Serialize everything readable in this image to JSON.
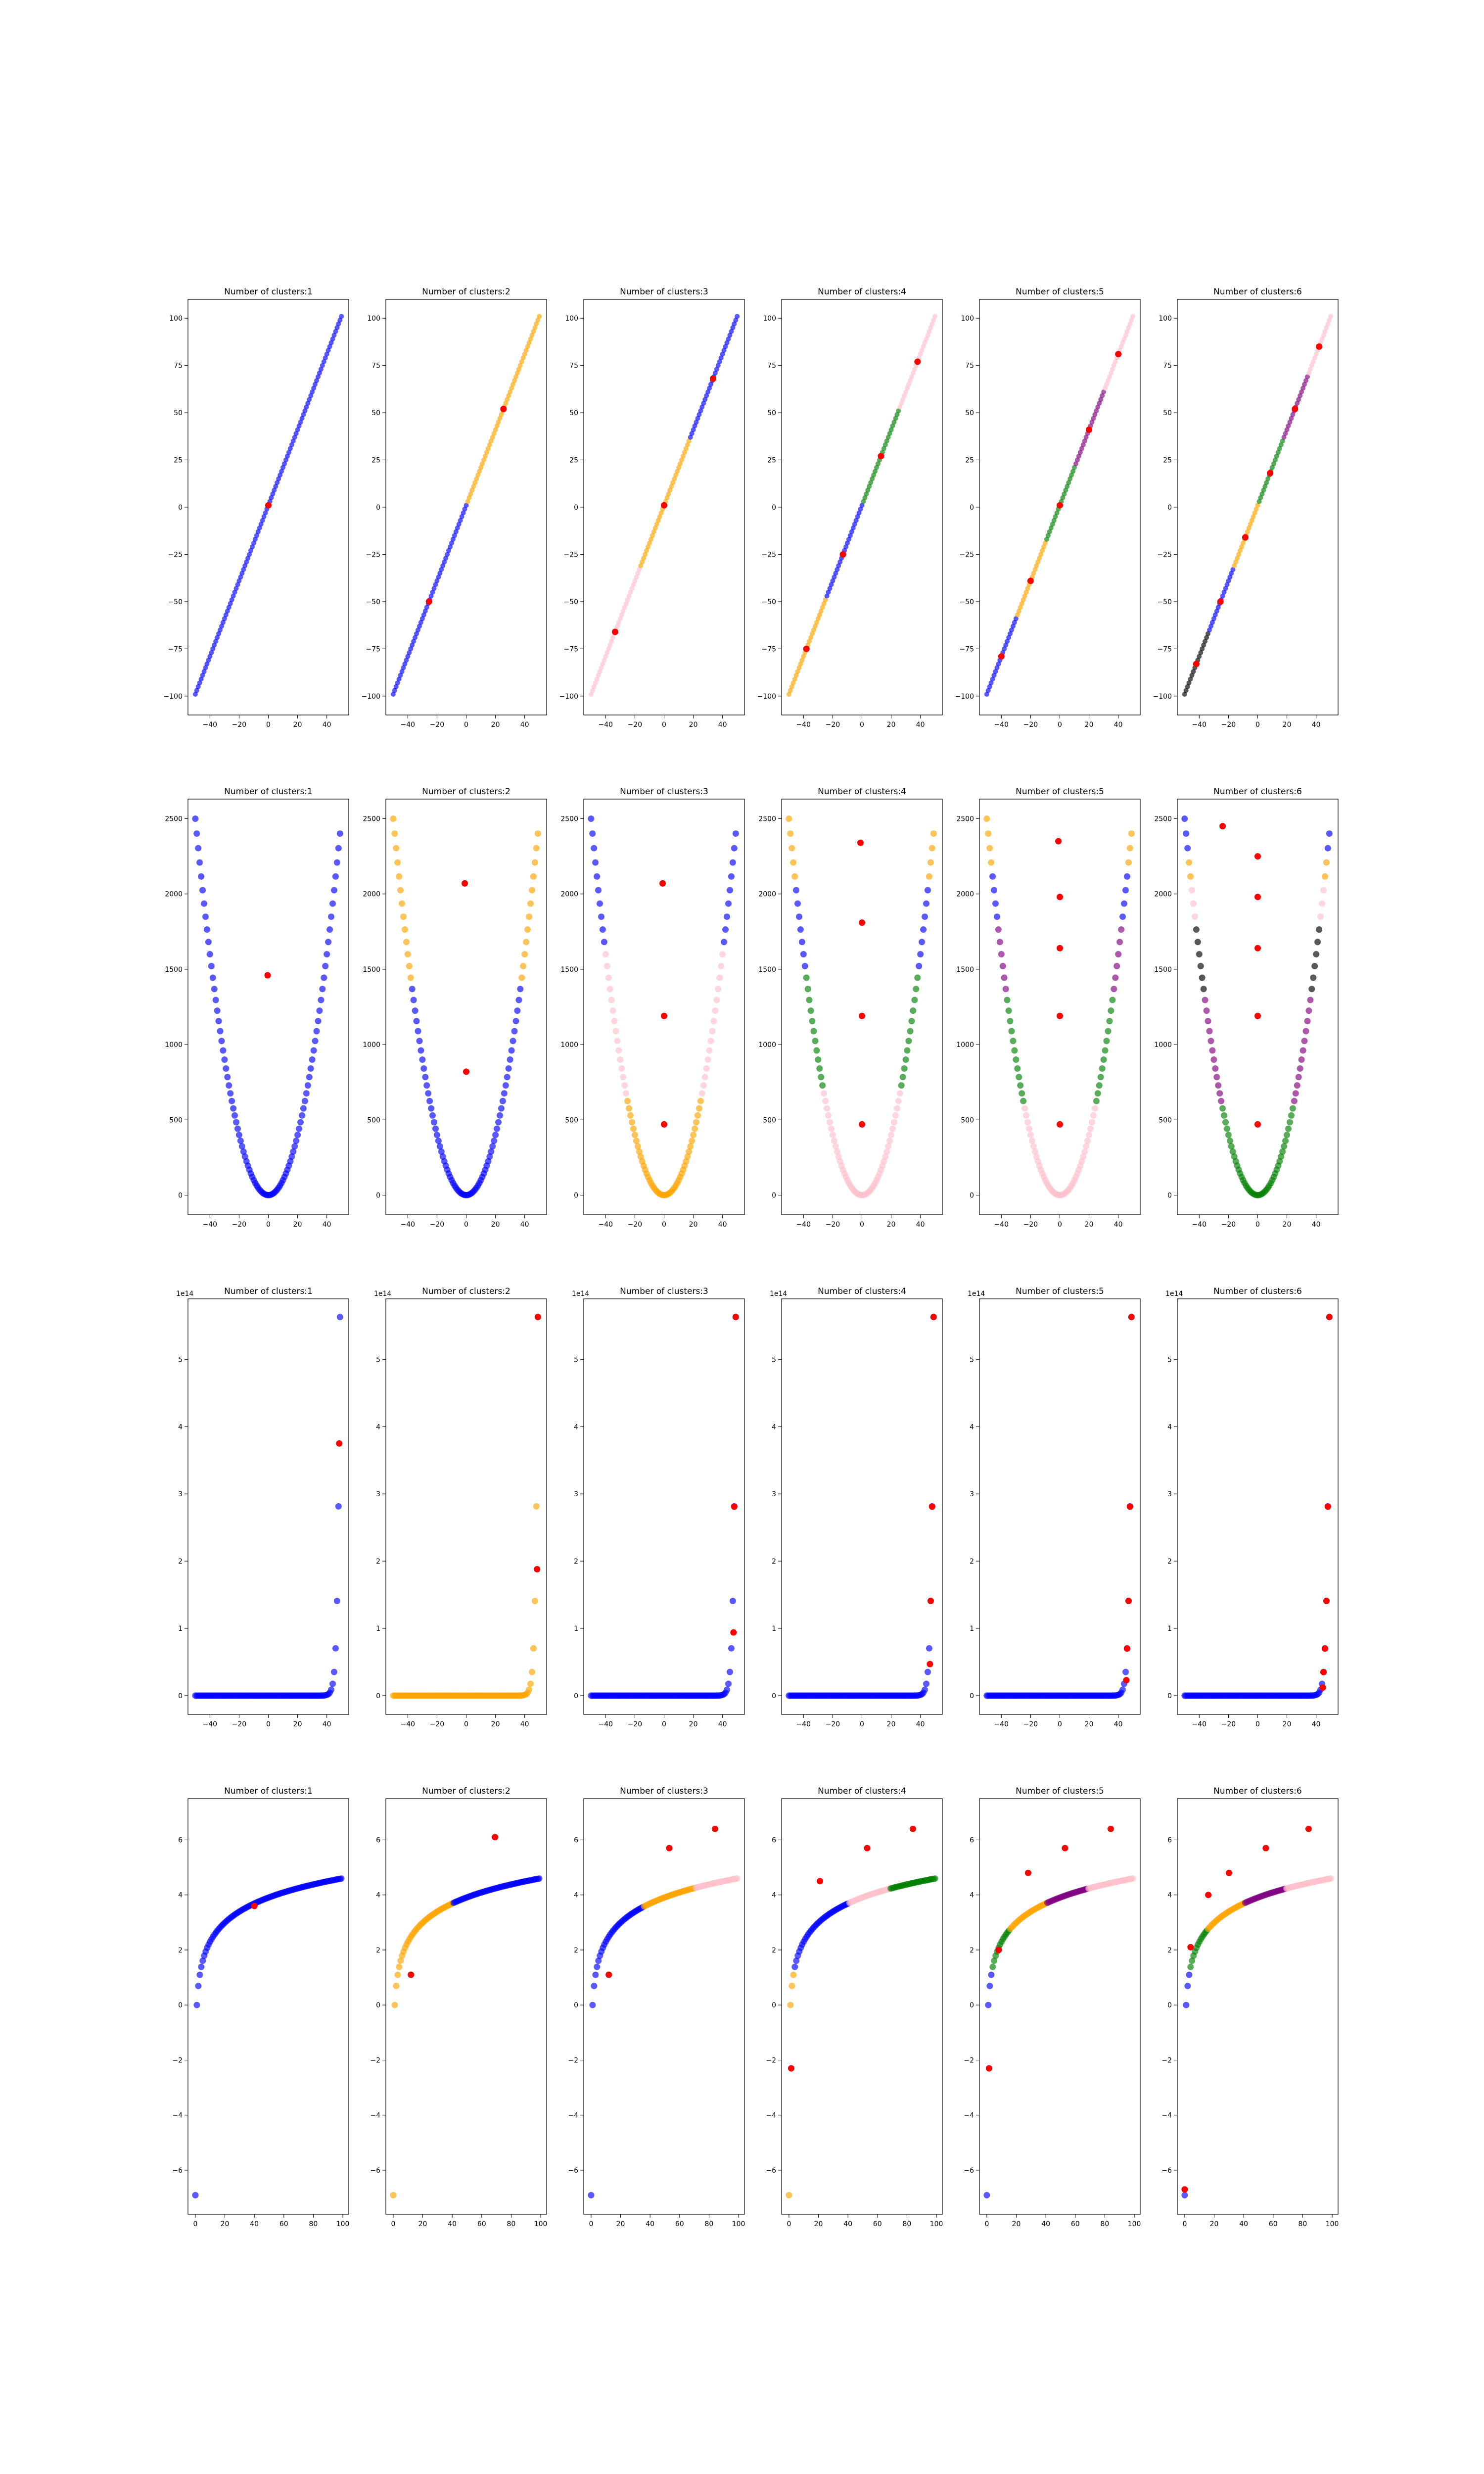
{
  "figure": {
    "layout": "4 rows × 6 columns of scatter plots",
    "background": "#ffffff"
  },
  "cluster_colors": [
    "#0000ff",
    "#ffa500",
    "#ffc0cb",
    "#008000",
    "#800080",
    "#000000"
  ],
  "centroid_color": "#ff0000",
  "chart_data": [
    {
      "row": 1,
      "type": "scatter",
      "function": "y = 2x + 1",
      "x_range": [
        -50,
        50
      ],
      "xlim": [
        -55,
        55
      ],
      "ylim": [
        -110,
        110
      ],
      "xticks": [
        -40,
        -20,
        0,
        20,
        40
      ],
      "yticks": [
        -100,
        -75,
        -50,
        -25,
        0,
        25,
        50,
        75,
        100
      ],
      "panels": [
        {
          "title": "Number of clusters:1",
          "k": 1,
          "boundaries": [],
          "centroids": [
            [
              0,
              1
            ]
          ]
        },
        {
          "title": "Number of clusters:2",
          "k": 2,
          "boundaries": [
            0
          ],
          "centroids": [
            [
              -25.5,
              -50
            ],
            [
              25.5,
              52
            ]
          ]
        },
        {
          "title": "Number of clusters:3",
          "k": 3,
          "boundaries": [
            -17,
            17
          ],
          "color_order": [
            2,
            1,
            0
          ],
          "centroids": [
            [
              -33.5,
              -66
            ],
            [
              0,
              1
            ],
            [
              33.5,
              68
            ]
          ]
        },
        {
          "title": "Number of clusters:4",
          "k": 4,
          "boundaries": [
            -25,
            0,
            25
          ],
          "color_order": [
            1,
            0,
            3,
            2
          ],
          "centroids": [
            [
              -38,
              -75
            ],
            [
              -13,
              -25
            ],
            [
              13,
              27
            ],
            [
              38,
              77
            ]
          ]
        },
        {
          "title": "Number of clusters:5",
          "k": 5,
          "boundaries": [
            -30,
            -10,
            10,
            30
          ],
          "color_order": [
            0,
            1,
            3,
            4,
            2
          ],
          "centroids": [
            [
              -40,
              -79
            ],
            [
              -20,
              -39
            ],
            [
              0,
              1
            ],
            [
              20,
              41
            ],
            [
              40,
              81
            ]
          ]
        },
        {
          "title": "Number of clusters:6",
          "k": 6,
          "boundaries": [
            -34,
            -17,
            0,
            17,
            34
          ],
          "color_order": [
            5,
            0,
            1,
            3,
            4,
            2
          ],
          "centroids": [
            [
              -42,
              -83
            ],
            [
              -25.5,
              -50
            ],
            [
              -8.5,
              -16
            ],
            [
              8.5,
              18
            ],
            [
              25.5,
              52
            ],
            [
              42,
              85
            ]
          ]
        }
      ]
    },
    {
      "row": 2,
      "type": "scatter",
      "function": "y = x^2",
      "x_range": [
        -50,
        49
      ],
      "xlim": [
        -55,
        55
      ],
      "ylim": [
        -130,
        2630
      ],
      "xticks": [
        -40,
        -20,
        0,
        20,
        40
      ],
      "yticks": [
        0,
        500,
        1000,
        1500,
        2000,
        2500
      ],
      "panels": [
        {
          "title": "Number of clusters:1",
          "k": 1,
          "boundaries": [],
          "centroids": [
            [
              -0.5,
              1460
            ]
          ]
        },
        {
          "title": "Number of clusters:2",
          "k": 2,
          "y_boundaries": [
            1400
          ],
          "color_order": [
            0,
            1
          ],
          "centroids": [
            [
              0,
              820
            ],
            [
              -1,
              2070
            ]
          ]
        },
        {
          "title": "Number of clusters:3",
          "k": 3,
          "y_boundaries": [
            640,
            1650
          ],
          "color_order": [
            1,
            2,
            0
          ],
          "centroids": [
            [
              0,
              470
            ],
            [
              0,
              1190
            ],
            [
              -1,
              2070
            ]
          ]
        },
        {
          "title": "Number of clusters:4",
          "k": 4,
          "y_boundaries": [
            720,
            1450,
            2100
          ],
          "color_order": [
            2,
            3,
            0,
            1
          ],
          "centroids": [
            [
              0,
              470
            ],
            [
              0,
              1190
            ],
            [
              0,
              1810
            ],
            [
              -1,
              2340
            ]
          ]
        },
        {
          "title": "Number of clusters:5",
          "k": 5,
          "y_boundaries": [
            620,
            1360,
            1800,
            2200
          ],
          "color_order": [
            2,
            3,
            4,
            0,
            1
          ],
          "centroids": [
            [
              0,
              470
            ],
            [
              0,
              1190
            ],
            [
              0,
              1640
            ],
            [
              0,
              1980
            ],
            [
              -1,
              2350
            ]
          ]
        },
        {
          "title": "Number of clusters:6",
          "k": 6,
          "y_boundaries": [
            620,
            1360,
            1800,
            2100,
            2300
          ],
          "color_order": [
            3,
            4,
            5,
            2,
            1,
            0
          ],
          "centroids": [
            [
              0,
              470
            ],
            [
              0,
              1190
            ],
            [
              0,
              1640
            ],
            [
              0,
              1980
            ],
            [
              0,
              2250
            ],
            [
              -24,
              2450
            ]
          ]
        }
      ]
    },
    {
      "row": 3,
      "type": "scatter",
      "function": "y = 2^x",
      "x_range": [
        -50,
        49
      ],
      "xlim": [
        -55,
        55
      ],
      "ylim": [
        -28000000000000.0,
        590000000000000.0
      ],
      "offset_text": "1e14",
      "xticks": [
        -40,
        -20,
        0,
        20,
        40
      ],
      "yticks": [
        0,
        1,
        2,
        3,
        4,
        5
      ],
      "ytick_scale": 100000000000000.0,
      "panels": [
        {
          "title": "Number of clusters:1",
          "k": 1,
          "point_colors": "all-blue",
          "centroids": [
            [
              48.5,
              375000000000000.0
            ]
          ]
        },
        {
          "title": "Number of clusters:2",
          "k": 2,
          "top_color": 1,
          "rest_color": 1,
          "centroids": [
            [
              48.5,
              188000000000000.0
            ],
            [
              49,
              563000000000000.0
            ]
          ]
        },
        {
          "title": "Number of clusters:3",
          "k": 3,
          "point_colors": "all-blue",
          "centroids": [
            [
              47.5,
              94000000000000.0
            ],
            [
              48,
              281000000000000.0
            ],
            [
              49,
              563000000000000.0
            ]
          ]
        },
        {
          "title": "Number of clusters:4",
          "k": 4,
          "point_colors": "all-blue",
          "centroids": [
            [
              46.5,
              47000000000000.0
            ],
            [
              47,
              141000000000000.0
            ],
            [
              48,
              281000000000000.0
            ],
            [
              49,
              563000000000000.0
            ]
          ]
        },
        {
          "title": "Number of clusters:5",
          "k": 5,
          "point_colors": "all-blue",
          "centroids": [
            [
              45.5,
              23000000000000.0
            ],
            [
              46,
              70000000000000.0
            ],
            [
              47,
              141000000000000.0
            ],
            [
              48,
              281000000000000.0
            ],
            [
              49,
              563000000000000.0
            ]
          ]
        },
        {
          "title": "Number of clusters:6",
          "k": 6,
          "point_colors": "all-blue",
          "centroids": [
            [
              44.5,
              12000000000000.0
            ],
            [
              45,
              35000000000000.0
            ],
            [
              46,
              70000000000000.0
            ],
            [
              47,
              141000000000000.0
            ],
            [
              48,
              281000000000000.0
            ],
            [
              49,
              563000000000000.0
            ]
          ]
        }
      ]
    },
    {
      "row": 4,
      "type": "scatter",
      "function": "y = log(x)",
      "x_range": [
        0.001,
        99
      ],
      "xlim": [
        -5,
        104
      ],
      "ylim": [
        -7.6,
        7.5
      ],
      "xticks": [
        0,
        20,
        40,
        60,
        80,
        100
      ],
      "yticks": [
        -6,
        -4,
        -2,
        0,
        2,
        4,
        6
      ],
      "panels": [
        {
          "title": "Number of clusters:1",
          "k": 1,
          "boundaries": [],
          "centroids": [
            [
              40,
              3.6
            ]
          ]
        },
        {
          "title": "Number of clusters:2",
          "k": 2,
          "boundaries": [
            40
          ],
          "color_order": [
            1,
            0
          ],
          "centroids": [
            [
              12,
              1.1
            ],
            [
              69,
              6.1
            ]
          ]
        },
        {
          "title": "Number of clusters:3",
          "k": 3,
          "boundaries": [
            35,
            70
          ],
          "color_order": [
            0,
            1,
            2
          ],
          "centroids": [
            [
              12,
              1.1
            ],
            [
              53,
              5.7
            ],
            [
              84,
              6.4
            ]
          ]
        },
        {
          "title": "Number of clusters:4",
          "k": 4,
          "boundaries": [
            3,
            40,
            68
          ],
          "color_order": [
            1,
            0,
            2,
            3
          ],
          "centroids": [
            [
              1.5,
              -2.3
            ],
            [
              21,
              4.5
            ],
            [
              53,
              5.7
            ],
            [
              84,
              6.4
            ]
          ]
        },
        {
          "title": "Number of clusters:5",
          "k": 5,
          "boundaries": [
            3,
            15,
            40,
            68
          ],
          "color_order": [
            0,
            3,
            1,
            4,
            2
          ],
          "centroids": [
            [
              1.5,
              -2.3
            ],
            [
              28,
              4.8
            ],
            [
              53,
              5.7
            ],
            [
              84,
              6.4
            ],
            [
              8,
              2
            ]
          ]
        },
        {
          "title": "Number of clusters:6",
          "k": 6,
          "boundaries": [
            3,
            15,
            40,
            68
          ],
          "color_order": [
            0,
            3,
            1,
            4,
            2
          ],
          "centroids": [
            [
              0,
              -6.7
            ],
            [
              4,
              2.1
            ],
            [
              16,
              4
            ],
            [
              30,
              4.8
            ],
            [
              55,
              5.7
            ],
            [
              84,
              6.4
            ]
          ]
        }
      ]
    }
  ]
}
